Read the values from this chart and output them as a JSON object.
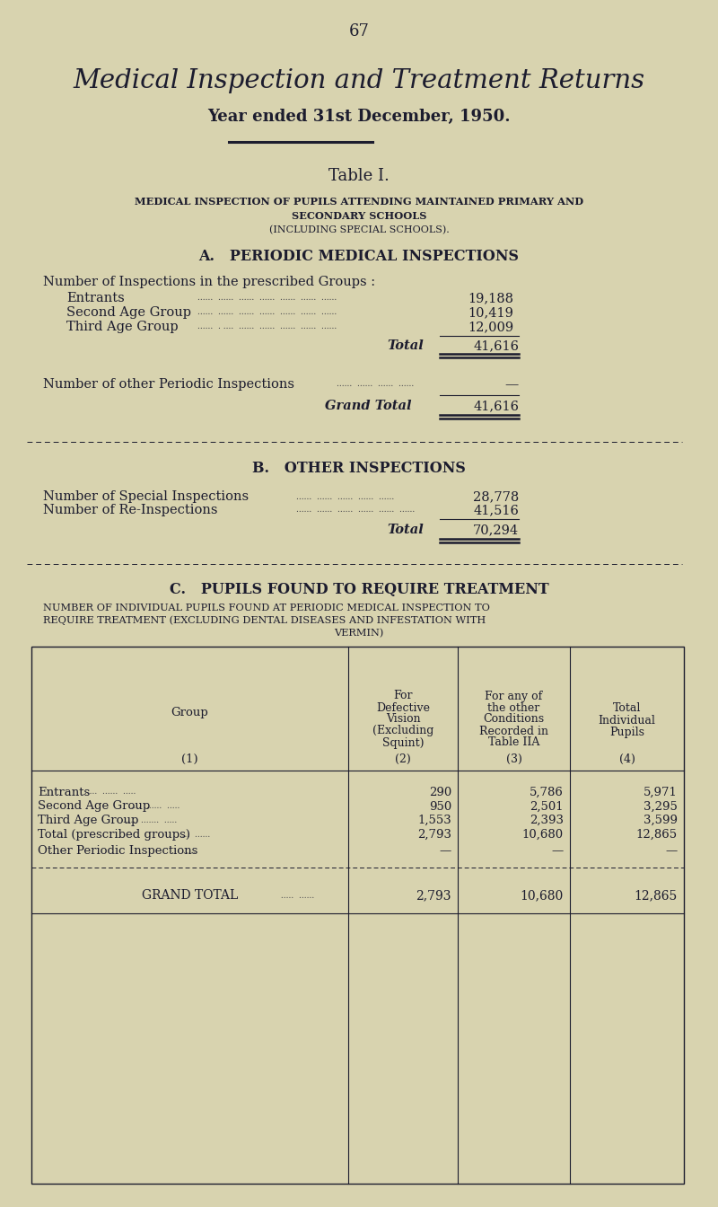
{
  "bg_color": "#d8d3af",
  "text_color": "#1c1c2e",
  "page_number": "67",
  "main_title": "Medical Inspection and Treatment Returns",
  "subtitle": "Year ended 31st December, 1950.",
  "table_title": "Table I.",
  "table_sub1": "Medical Inspection of Pupils Attending Maintained Primary and",
  "table_sub2": "Secondary Schools",
  "table_sub3": "(Including Special Schools).",
  "sec_a_title": "A.   PERIODIC MEDICAL INSPECTIONS",
  "sec_a_intro": "Number of Inspections in the prescribed Groups :",
  "sec_a_rows": [
    {
      "label": "Entrants",
      "value": "19,188"
    },
    {
      "label": "Second Age Group",
      "value": "10,419"
    },
    {
      "label": "Third Age Group",
      "value": "12,009"
    }
  ],
  "sec_a_total": "41,616",
  "sec_a_other_label": "Number of other Periodic Inspections",
  "sec_a_other_value": "—",
  "sec_a_grand_total": "41,616",
  "sec_b_title": "B.   OTHER INSPECTIONS",
  "sec_b_rows": [
    {
      "label": "Number of Special Inspections",
      "value": "28,778"
    },
    {
      "label": "Number of Re-Inspections",
      "value": "41,516"
    }
  ],
  "sec_b_total": "70,294",
  "sec_c_title": "C.   PUPILS FOUND TO REQUIRE TREATMENT",
  "sec_c_line1": "Number of Individual Pupils found at Periodic Medical Inspection to",
  "sec_c_line2": "Require Treatment (excluding Dental Diseases and Infestation with",
  "sec_c_line3": "Vermin)",
  "col1_hdr": "Group",
  "col1_sub": "(1)",
  "col2_hdr": [
    "For",
    "Defective",
    "Vision",
    "(Excluding",
    "Squint)"
  ],
  "col2_sub": "(2)",
  "col3_hdr": [
    "For any of",
    "the other",
    "Conditions",
    "Recorded in",
    "Table IIA"
  ],
  "col3_sub": "(3)",
  "col4_hdr": [
    "Total",
    "Individual",
    "Pupils"
  ],
  "col4_sub": "(4)",
  "tbl_rows": [
    {
      "g": "Entrants",
      "c2": "290",
      "c3": "5,786",
      "c4": "5,971"
    },
    {
      "g": "Second Age Group",
      "c2": "950",
      "c3": "2,501",
      "c4": "3,295"
    },
    {
      "g": "Third Age Group",
      "c2": "1,553",
      "c3": "2,393",
      "c4": "3,599"
    },
    {
      "g": "Total (prescribed groups)",
      "c2": "2,793",
      "c3": "10,680",
      "c4": "12,865"
    },
    {
      "g": "Other Periodic Inspections",
      "c2": "—",
      "c3": "—",
      "c4": "—"
    }
  ],
  "tbl_grand": {
    "g": "Grand Total",
    "c2": "2,793",
    "c3": "10,680",
    "c4": "12,865"
  }
}
